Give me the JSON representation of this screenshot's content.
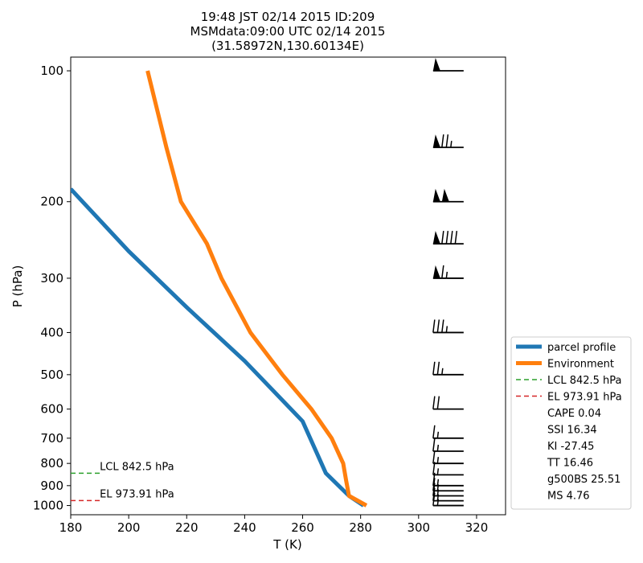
{
  "chart_data": {
    "type": "line",
    "title_lines": [
      "19:48 JST 02/14 2015  ID:209",
      "MSMdata:09:00 UTC 02/14 2015",
      "(31.58972N,130.60134E)"
    ],
    "xlabel": "T (K)",
    "ylabel": "P (hPa)",
    "xlim": [
      180,
      330
    ],
    "ylim": [
      1050,
      93
    ],
    "y_scale": "log",
    "x_ticks": [
      180,
      200,
      220,
      240,
      260,
      280,
      300,
      320
    ],
    "y_ticks": [
      100,
      200,
      300,
      400,
      500,
      600,
      700,
      800,
      900,
      1000
    ],
    "grid": false,
    "legend_position": "outside-right-bottom",
    "series": [
      {
        "name": "parcel profile",
        "color": "#1f77b4",
        "x": [
          180,
          200,
          220,
          240,
          260,
          268,
          276,
          281
        ],
        "y": [
          187,
          260,
          350,
          465,
          640,
          842.5,
          950,
          1000
        ]
      },
      {
        "name": "Environment",
        "color": "#ff7f0e",
        "x": [
          282,
          276,
          275,
          274,
          270,
          263,
          253,
          242,
          232,
          227,
          218,
          213,
          206.5
        ],
        "y": [
          1000,
          950,
          875,
          800,
          700,
          600,
          500,
          400,
          300,
          250,
          200,
          150,
          100
        ]
      }
    ],
    "reference_lines": [
      {
        "label": "LCL 842.5 hPa",
        "pressure": 842.5,
        "color": "#2ca02c",
        "x_range": [
          180,
          190
        ]
      },
      {
        "label": "EL 973.91 hPa",
        "pressure": 973.91,
        "color": "#d62728",
        "x_range": [
          180,
          190
        ]
      }
    ],
    "indices": [
      "CAPE 0.04",
      "SSI 16.34",
      "KI -27.45",
      "TT 16.46",
      "g500BS 25.51",
      "MS 4.76"
    ],
    "wind_barbs": {
      "x_position": 305,
      "color": "#000000",
      "levels": [
        {
          "pressure": 100,
          "speed_kt": 50
        },
        {
          "pressure": 150,
          "speed_kt": 75
        },
        {
          "pressure": 200,
          "speed_kt": 100
        },
        {
          "pressure": 250,
          "speed_kt": 90
        },
        {
          "pressure": 300,
          "speed_kt": 65
        },
        {
          "pressure": 400,
          "speed_kt": 35
        },
        {
          "pressure": 500,
          "speed_kt": 25
        },
        {
          "pressure": 600,
          "speed_kt": 20
        },
        {
          "pressure": 700,
          "speed_kt": 15
        },
        {
          "pressure": 750,
          "speed_kt": 15
        },
        {
          "pressure": 800,
          "speed_kt": 15
        },
        {
          "pressure": 850,
          "speed_kt": 15
        },
        {
          "pressure": 900,
          "speed_kt": 15
        },
        {
          "pressure": 925,
          "speed_kt": 15
        },
        {
          "pressure": 950,
          "speed_kt": 15
        },
        {
          "pressure": 975,
          "speed_kt": 15
        },
        {
          "pressure": 1000,
          "speed_kt": 15
        }
      ]
    }
  }
}
